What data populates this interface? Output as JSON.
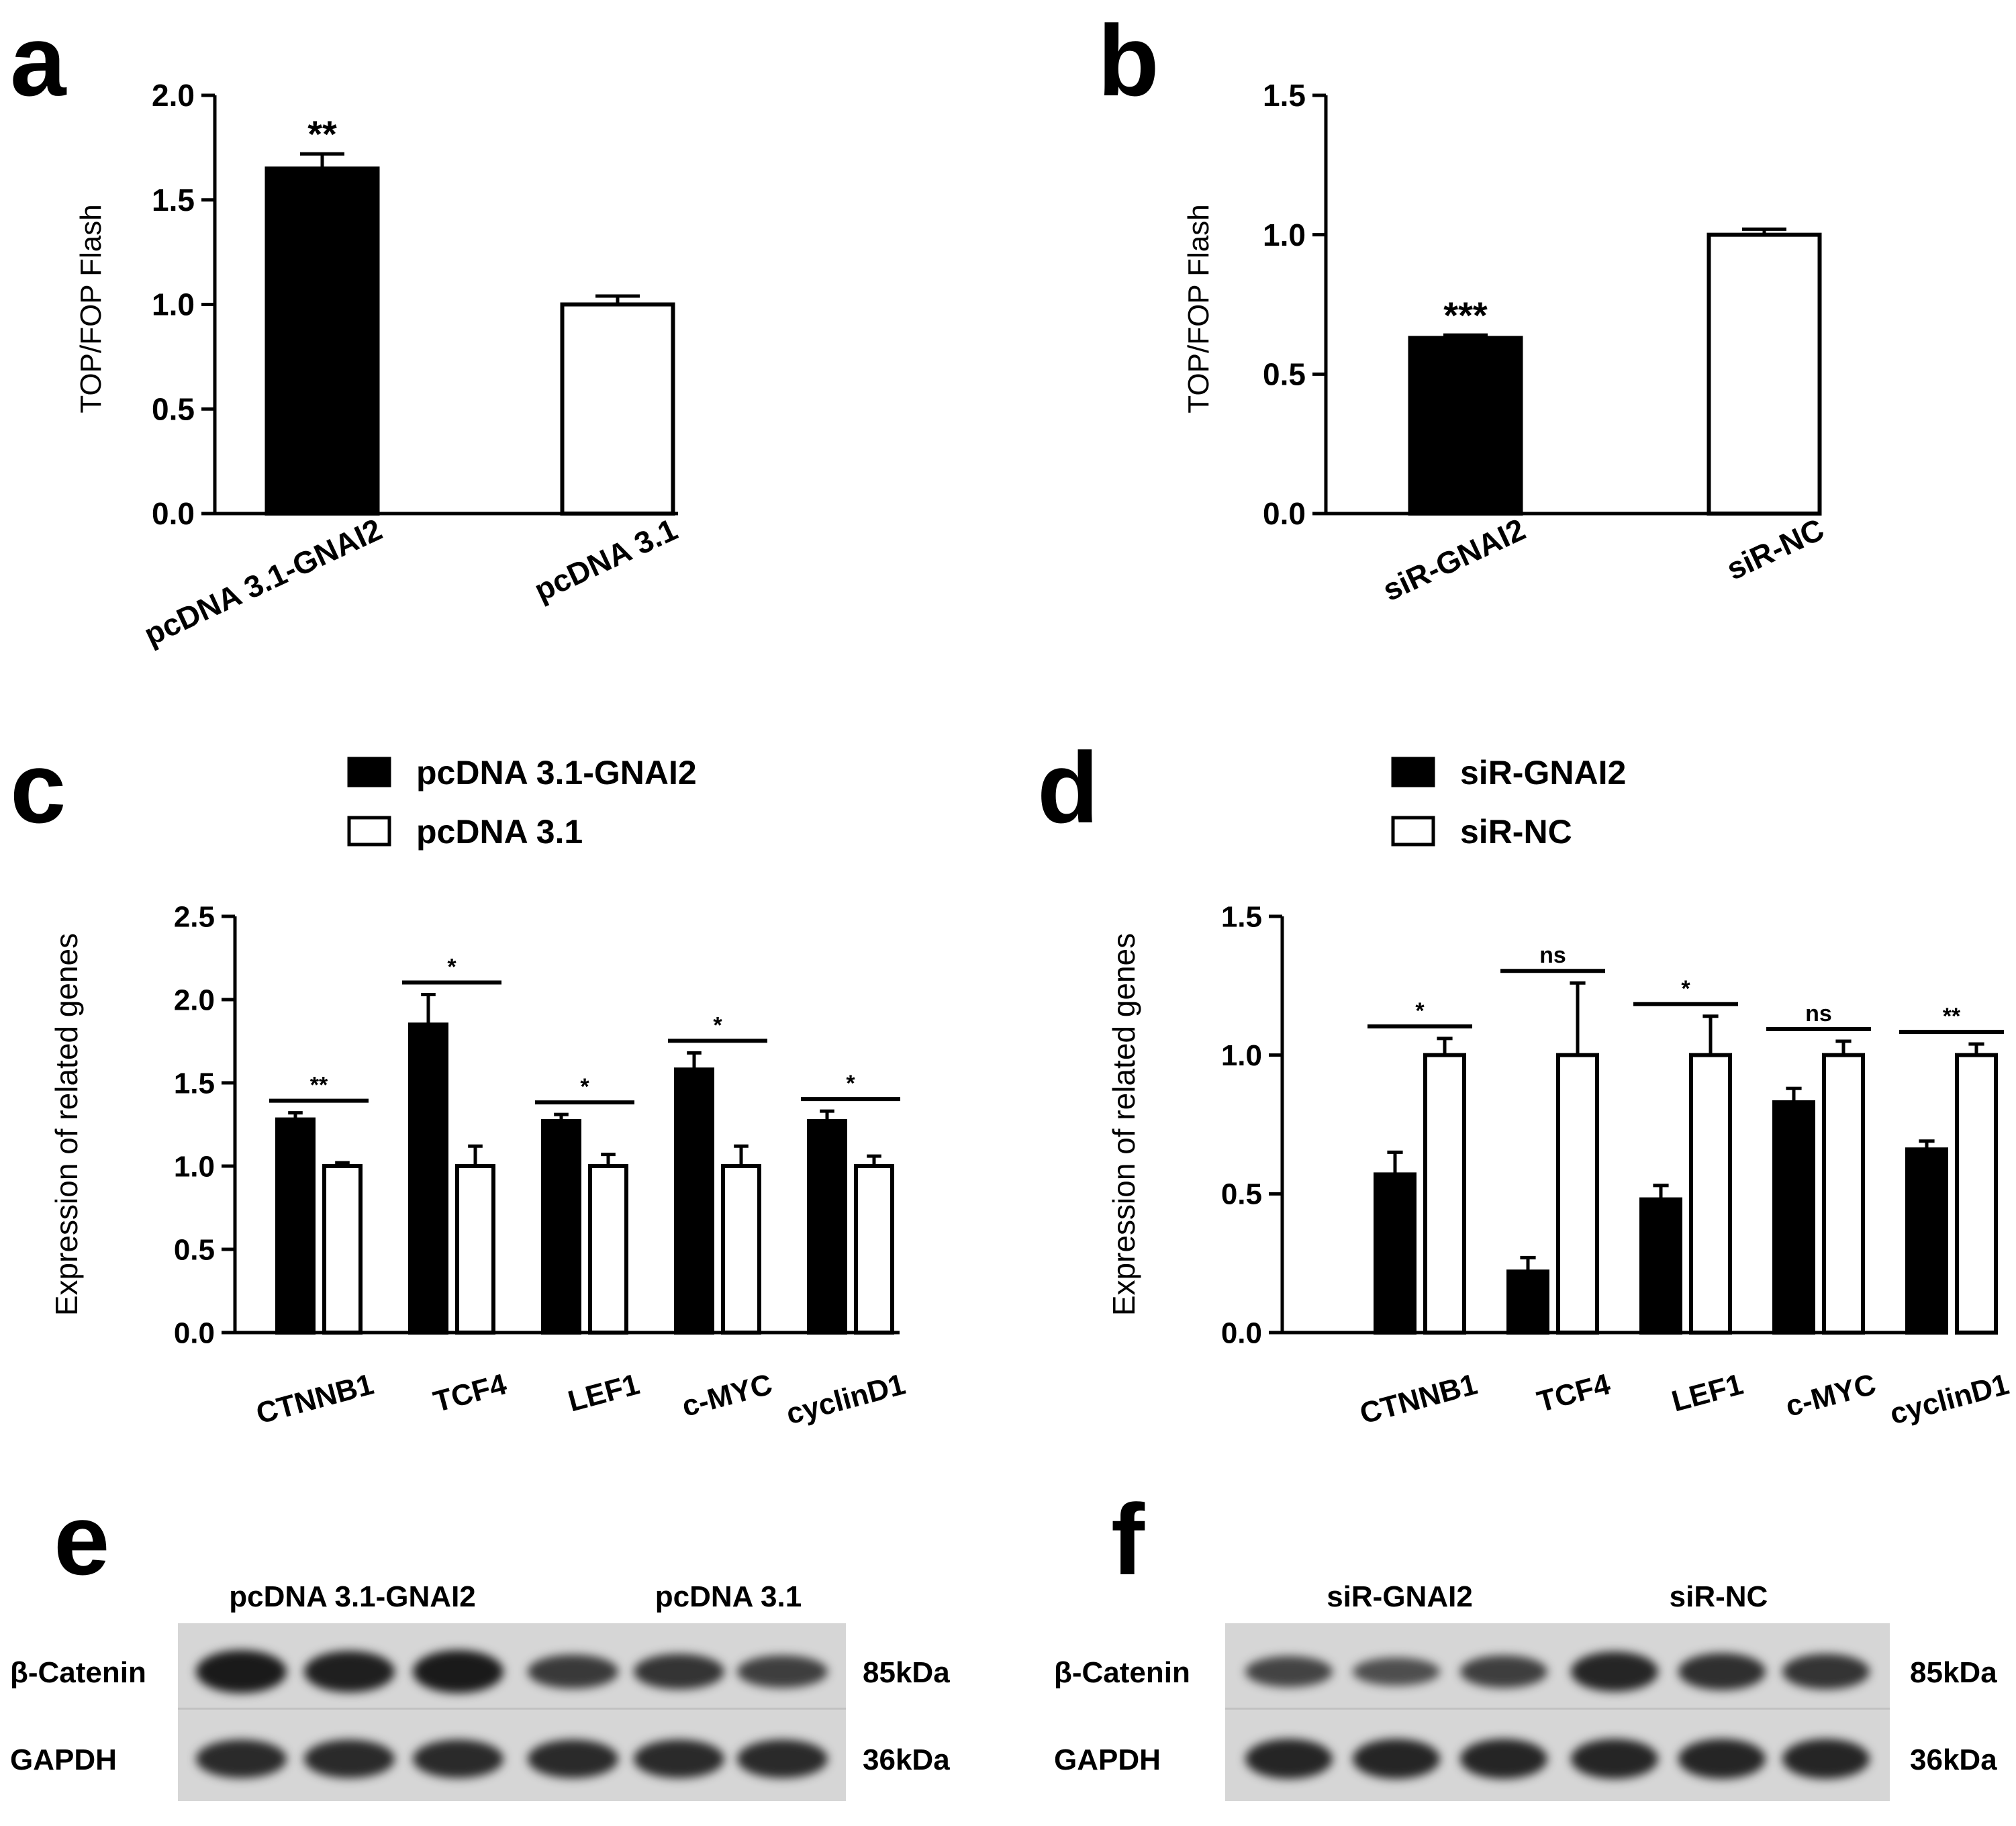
{
  "panels": {
    "a": {
      "letter": "a"
    },
    "b": {
      "letter": "b"
    },
    "c": {
      "letter": "c"
    },
    "d": {
      "letter": "d"
    },
    "e": {
      "letter": "e"
    },
    "f": {
      "letter": "f"
    }
  },
  "colors": {
    "filled": "#000000",
    "open": "#ffffff",
    "stroke": "#000000",
    "blot_bg": "#d6d6d6",
    "blot_band": "#1a1a1a"
  },
  "chart_data": [
    {
      "panel": "a",
      "type": "bar",
      "categories": [
        "pcDNA 3.1-GNAI2",
        "pcDNA 3.1"
      ],
      "values": [
        1.65,
        1.0
      ],
      "errors": [
        0.07,
        0.04
      ],
      "fills": [
        "filled",
        "open"
      ],
      "annotations": [
        "**",
        ""
      ],
      "ylabel": "TOP/FOP Flash",
      "ylim": [
        0,
        2.0
      ],
      "yticks": [
        "0.0",
        "0.5",
        "1.0",
        "1.5",
        "2.0"
      ]
    },
    {
      "panel": "b",
      "type": "bar",
      "categories": [
        "siR-GNAI2",
        "siR-NC"
      ],
      "values": [
        0.63,
        1.0
      ],
      "errors": [
        0.01,
        0.02
      ],
      "fills": [
        "filled",
        "open"
      ],
      "annotations": [
        "***",
        ""
      ],
      "ylabel": "TOP/FOP Flash",
      "ylim": [
        0,
        1.5
      ],
      "yticks": [
        "0.0",
        "0.5",
        "1.0",
        "1.5"
      ]
    },
    {
      "panel": "c",
      "type": "bar",
      "categories": [
        "CTNNB1",
        "TCF4",
        "LEF1",
        "c-MYC",
        "cyclinD1"
      ],
      "series": [
        {
          "name": "pcDNA 3.1-GNAI2",
          "fill": "filled",
          "values": [
            1.28,
            1.85,
            1.27,
            1.58,
            1.27
          ],
          "errors": [
            0.04,
            0.18,
            0.04,
            0.1,
            0.06
          ]
        },
        {
          "name": "pcDNA 3.1",
          "fill": "open",
          "values": [
            1.0,
            1.0,
            1.0,
            1.0,
            1.0
          ],
          "errors": [
            0.02,
            0.12,
            0.07,
            0.12,
            0.06
          ]
        }
      ],
      "significance": [
        "**",
        "*",
        "*",
        "*",
        "*"
      ],
      "ylabel": "Expression of related genes",
      "ylim": [
        0,
        2.5
      ],
      "yticks": [
        "0.0",
        "0.5",
        "1.0",
        "1.5",
        "2.0",
        "2.5"
      ],
      "legend": "top"
    },
    {
      "panel": "d",
      "type": "bar",
      "categories": [
        "CTNNB1",
        "TCF4",
        "LEF1",
        "c-MYC",
        "cyclinD1"
      ],
      "series": [
        {
          "name": "siR-GNAI2",
          "fill": "filled",
          "values": [
            0.57,
            0.22,
            0.48,
            0.83,
            0.66
          ],
          "errors": [
            0.08,
            0.05,
            0.05,
            0.05,
            0.03
          ]
        },
        {
          "name": "siR-NC",
          "fill": "open",
          "values": [
            1.0,
            1.0,
            1.0,
            1.0,
            1.0
          ],
          "errors": [
            0.06,
            0.26,
            0.14,
            0.05,
            0.04
          ]
        }
      ],
      "significance": [
        "*",
        "ns",
        "*",
        "ns",
        "**"
      ],
      "ylabel": "Expression of related genes",
      "ylim": [
        0,
        1.5
      ],
      "yticks": [
        "0.0",
        "0.5",
        "1.0",
        "1.5"
      ],
      "legend": "top"
    }
  ],
  "blots": [
    {
      "panel": "e",
      "groups": [
        "pcDNA 3.1-GNAI2",
        "pcDNA 3.1"
      ],
      "rows": [
        {
          "protein": "β-Catenin",
          "size": "85kDa",
          "intensity": [
            1.0,
            0.95,
            1.0,
            0.7,
            0.75,
            0.65
          ]
        },
        {
          "protein": "GAPDH",
          "size": "36kDa",
          "intensity": [
            0.85,
            0.85,
            0.85,
            0.85,
            0.85,
            0.85
          ]
        }
      ]
    },
    {
      "panel": "f",
      "groups": [
        "siR-GNAI2",
        "siR-NC"
      ],
      "rows": [
        {
          "protein": "β-Catenin",
          "size": "85kDa",
          "intensity": [
            0.6,
            0.5,
            0.65,
            0.9,
            0.8,
            0.75
          ]
        },
        {
          "protein": "GAPDH",
          "size": "36kDa",
          "intensity": [
            0.9,
            0.9,
            0.9,
            0.9,
            0.9,
            0.9
          ]
        }
      ]
    }
  ]
}
